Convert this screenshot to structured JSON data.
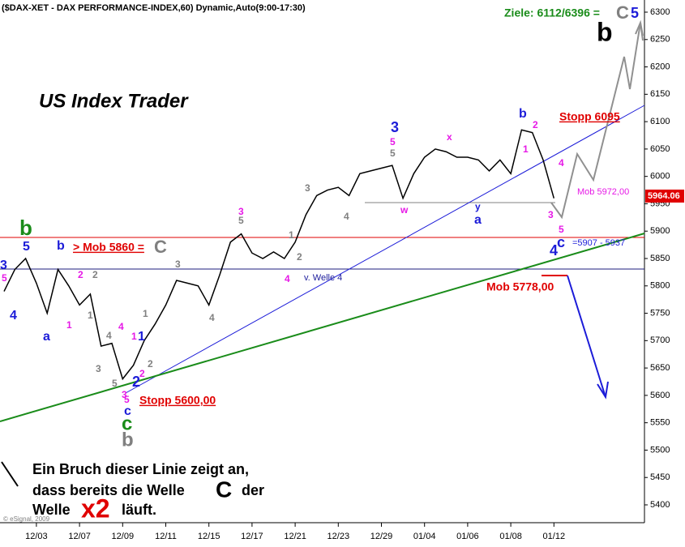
{
  "chart_data": {
    "type": "line",
    "title": "($DAX-XET - DAX PERFORMANCE-INDEX,60) Dynamic,Auto(9:00-17:30)",
    "categories": [
      null,
      null,
      null,
      "12/03",
      null,
      null,
      null,
      "12/07",
      null,
      null,
      null,
      "12/09",
      null,
      null,
      null,
      "12/11",
      null,
      null,
      null,
      "12/15",
      null,
      null,
      null,
      "12/17",
      null,
      null,
      null,
      "12/21",
      null,
      null,
      null,
      "12/23",
      null,
      null,
      null,
      "12/29",
      null,
      null,
      null,
      "01/04",
      null,
      null,
      null,
      "01/06",
      null,
      null,
      null,
      "01/08",
      null,
      null,
      null,
      "01/12"
    ],
    "series": [
      {
        "name": "$DAX-XET",
        "color": "#000000",
        "values": [
          5790,
          5830,
          5850,
          5805,
          5750,
          5830,
          5800,
          5765,
          5785,
          5690,
          5695,
          5630,
          5655,
          5700,
          5730,
          5765,
          5810,
          5805,
          5800,
          5765,
          5820,
          5880,
          5895,
          5860,
          5850,
          5862,
          5850,
          5880,
          5930,
          5965,
          5975,
          5980,
          5965,
          6005,
          6010,
          6015,
          6020,
          5960,
          6005,
          6035,
          6050,
          6045,
          6035,
          6035,
          6030,
          6010,
          6030,
          6005,
          6085,
          6080,
          6030,
          5960
        ]
      }
    ],
    "last_value": 5964.06,
    "ylim": [
      5375,
      6315
    ],
    "yticks": [
      5400,
      5450,
      5500,
      5550,
      5600,
      5650,
      5700,
      5750,
      5800,
      5850,
      5900,
      5950,
      6000,
      6050,
      6100,
      6150,
      6200,
      6250,
      6300
    ],
    "annotations": [
      {
        "text": "Ziele: 6112/6396 =",
        "color": "#1a8c1a"
      },
      {
        "text": "C",
        "color": "#808080"
      },
      {
        "text": "5",
        "color": "#1c1cd8"
      },
      {
        "text": "b",
        "color": "#000000"
      },
      {
        "text": "US Index Trader",
        "color": "#000000"
      },
      {
        "text": "Stopp 6095",
        "color": "#e00000"
      },
      {
        "text": "Mob 5972,00",
        "color": "#e619e6"
      },
      {
        "text": "> Mob 5860 =",
        "color": "#e00000"
      },
      {
        "text": "C",
        "color": "#808080"
      },
      {
        "text": "=5907 - 5937",
        "color": "#1c1cd8"
      },
      {
        "text": "v. Welle 4",
        "color": "#1c1c9c"
      },
      {
        "text": "Mob 5778,00",
        "color": "#e00000"
      },
      {
        "text": "Stopp 5600,00",
        "color": "#e00000"
      },
      {
        "text": "Ein Bruch dieser Linie zeigt an,",
        "color": "#000000"
      },
      {
        "text": "dass bereits die Welle",
        "color": "#000000"
      },
      {
        "text": "C",
        "color": "#000000"
      },
      {
        "text": "der",
        "color": "#000000"
      },
      {
        "text": "Welle",
        "color": "#000000"
      },
      {
        "text": "x2",
        "color": "#e00000"
      },
      {
        "text": "läuft.",
        "color": "#000000"
      },
      {
        "text": "© eSignal, 2009",
        "color": "#808080"
      },
      {
        "text": "b",
        "color": "#1a8c1a"
      },
      {
        "text": "5",
        "color": "#1c1cd8"
      },
      {
        "text": "b",
        "color": "#1c1cd8"
      },
      {
        "text": "3",
        "color": "#1c1cd8"
      },
      {
        "text": "5",
        "color": "#e619e6"
      },
      {
        "text": "4",
        "color": "#1c1cd8"
      },
      {
        "text": "a",
        "color": "#1c1cd8"
      },
      {
        "text": "1",
        "color": "#e619e6"
      },
      {
        "text": "2",
        "color": "#e619e6"
      },
      {
        "text": "2",
        "color": "#808080"
      },
      {
        "text": "1",
        "color": "#808080"
      },
      {
        "text": "3",
        "color": "#808080"
      },
      {
        "text": "4",
        "color": "#808080"
      },
      {
        "text": "5",
        "color": "#808080"
      },
      {
        "text": "3",
        "color": "#e619e6"
      },
      {
        "text": "4",
        "color": "#e619e6"
      },
      {
        "text": "1",
        "color": "#e619e6"
      },
      {
        "text": "1",
        "color": "#1c1cd8"
      },
      {
        "text": "1",
        "color": "#808080"
      },
      {
        "text": "2",
        "color": "#808080"
      },
      {
        "text": "2",
        "color": "#e619e6"
      },
      {
        "text": "2",
        "color": "#1c1cd8"
      },
      {
        "text": "5",
        "color": "#e619e6"
      },
      {
        "text": "c",
        "color": "#1c1cd8"
      },
      {
        "text": "c",
        "color": "#1a8c1a"
      },
      {
        "text": "b",
        "color": "#808080"
      },
      {
        "text": "3",
        "color": "#808080"
      },
      {
        "text": "4",
        "color": "#808080"
      },
      {
        "text": "3",
        "color": "#e619e6"
      },
      {
        "text": "5",
        "color": "#808080"
      },
      {
        "text": "1",
        "color": "#808080"
      },
      {
        "text": "2",
        "color": "#808080"
      },
      {
        "text": "4",
        "color": "#e619e6"
      },
      {
        "text": "3",
        "color": "#808080"
      },
      {
        "text": "4",
        "color": "#808080"
      },
      {
        "text": "3",
        "color": "#1c1cd8"
      },
      {
        "text": "5",
        "color": "#e619e6"
      },
      {
        "text": "5",
        "color": "#808080"
      },
      {
        "text": "x",
        "color": "#e619e6"
      },
      {
        "text": "w",
        "color": "#e619e6"
      },
      {
        "text": "y",
        "color": "#1c1cd8"
      },
      {
        "text": "a",
        "color": "#1c1cd8"
      },
      {
        "text": "b",
        "color": "#1c1cd8"
      },
      {
        "text": "2",
        "color": "#e619e6"
      },
      {
        "text": "1",
        "color": "#e619e6"
      },
      {
        "text": "4",
        "color": "#e619e6"
      },
      {
        "text": "3",
        "color": "#e619e6"
      },
      {
        "text": "5",
        "color": "#e619e6"
      },
      {
        "text": "c",
        "color": "#1c1cd8"
      },
      {
        "text": "4",
        "color": "#1c1cd8"
      }
    ]
  }
}
